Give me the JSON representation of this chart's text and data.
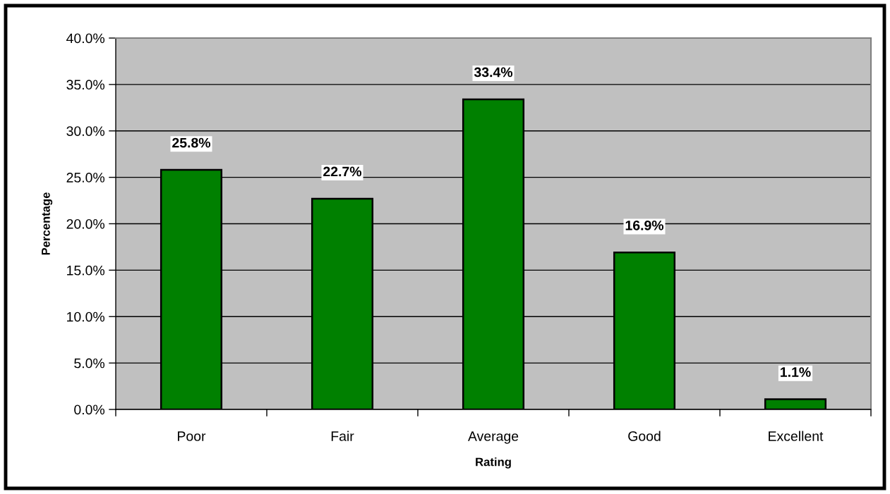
{
  "chart_data": {
    "type": "bar",
    "xlabel": "Rating",
    "ylabel": "Percentage",
    "categories": [
      "Poor",
      "Fair",
      "Average",
      "Good",
      "Excellent"
    ],
    "values": [
      25.8,
      22.7,
      33.4,
      16.9,
      1.1
    ],
    "color": "#008000",
    "value_labels": [
      "25.8%",
      "22.7%",
      "33.4%",
      "16.9%",
      "1.1%"
    ],
    "ylim": [
      0,
      40
    ],
    "yticks": [
      {
        "value": 0,
        "label": "0.0%"
      },
      {
        "value": 5,
        "label": "5.0%"
      },
      {
        "value": 10,
        "label": "10.0%"
      },
      {
        "value": 15,
        "label": "15.0%"
      },
      {
        "value": 20,
        "label": "20.0%"
      },
      {
        "value": 25,
        "label": "25.0%"
      },
      {
        "value": 30,
        "label": "30.0%"
      },
      {
        "value": 35,
        "label": "35.0%"
      },
      {
        "value": 40,
        "label": "40.0%"
      }
    ],
    "grid": "y",
    "legend": false
  }
}
